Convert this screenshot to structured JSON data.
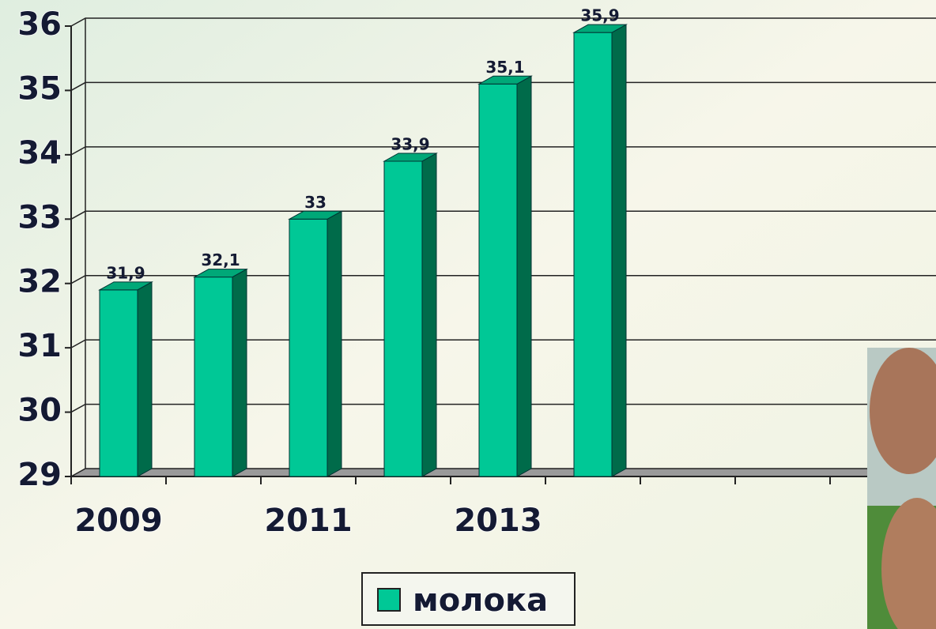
{
  "chart_data": {
    "type": "bar3d",
    "categories": [
      "2009",
      null,
      "2011",
      null,
      "2013",
      null,
      null,
      null,
      null
    ],
    "series": [
      {
        "name": "молока",
        "color": "#00c896",
        "values": [
          31.9,
          32.1,
          33,
          33.9,
          35.1,
          35.9,
          null,
          null,
          null
        ],
        "value_labels": [
          "31,9",
          "32,1",
          "33",
          "33,9",
          "35,1",
          "35,9",
          null,
          null,
          null
        ]
      }
    ],
    "ylim": [
      29,
      36
    ],
    "yticks": [
      29,
      30,
      31,
      32,
      33,
      34,
      35,
      36
    ],
    "grid": true,
    "legend": "bottom"
  }
}
